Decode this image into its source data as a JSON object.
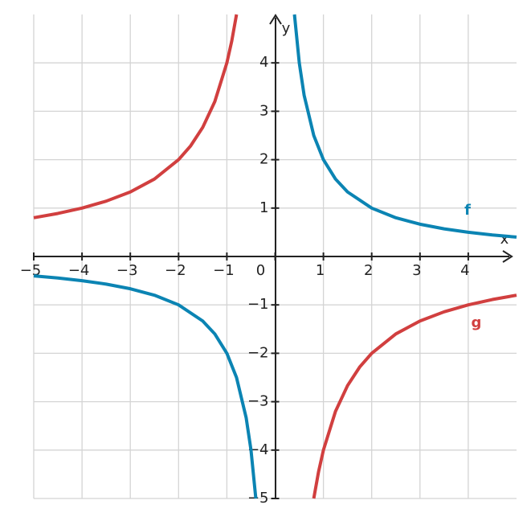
{
  "chart_data": {
    "type": "line",
    "xlabel": "x",
    "ylabel": "y",
    "xlim": [
      -5,
      5
    ],
    "ylim": [
      -5,
      5
    ],
    "xticks": [
      {
        "value": -5,
        "label": "−5"
      },
      {
        "value": -4,
        "label": "−4"
      },
      {
        "value": -3,
        "label": "−3"
      },
      {
        "value": -2,
        "label": "−2"
      },
      {
        "value": -1,
        "label": "−1"
      },
      0,
      1,
      2,
      3,
      4
    ],
    "yticks": [
      {
        "value": -5,
        "label": "−5"
      },
      {
        "value": -4,
        "label": "−4"
      },
      {
        "value": -3,
        "label": "−3"
      },
      {
        "value": -2,
        "label": "−2"
      },
      {
        "value": -1,
        "label": "−1"
      },
      1,
      2,
      3,
      4
    ],
    "grid": true,
    "series": [
      {
        "name": "f",
        "color": "#0b84b3",
        "x": [
          -5,
          -4.5,
          -4,
          -3.5,
          -3,
          -2.5,
          -2,
          -1.5,
          -1.25,
          -1,
          -0.8,
          -0.6,
          -0.5,
          -0.4,
          0,
          0.4,
          0.5,
          0.6,
          0.8,
          1,
          1.25,
          1.5,
          2,
          2.5,
          3,
          3.5,
          4,
          4.5,
          5
        ],
        "values": [
          -0.4,
          -0.444,
          -0.5,
          -0.571,
          -0.667,
          -0.8,
          -1,
          -1.333,
          -1.6,
          -2,
          -2.5,
          -3.333,
          -4,
          -5,
          null,
          5,
          4,
          3.333,
          2.5,
          2,
          1.6,
          1.333,
          1,
          0.8,
          0.667,
          0.571,
          0.5,
          0.444,
          0.4
        ]
      },
      {
        "name": "g",
        "color": "#d13f3f",
        "x": [
          -5,
          -4.5,
          -4,
          -3.5,
          -3,
          -2.5,
          -2,
          -1.75,
          -1.5,
          -1.25,
          -1,
          -0.9,
          -0.8,
          0,
          0.8,
          0.9,
          1,
          1.25,
          1.5,
          1.75,
          2,
          2.5,
          3,
          3.5,
          4,
          4.5,
          5
        ],
        "values": [
          0.8,
          0.889,
          1,
          1.143,
          1.333,
          1.6,
          2,
          2.286,
          2.667,
          3.2,
          4,
          4.444,
          5,
          null,
          -5,
          -4.444,
          -4,
          -3.2,
          -2.667,
          -2.286,
          -2,
          -1.6,
          -1.333,
          -1.143,
          -1,
          -0.889,
          -0.8
        ]
      }
    ]
  }
}
